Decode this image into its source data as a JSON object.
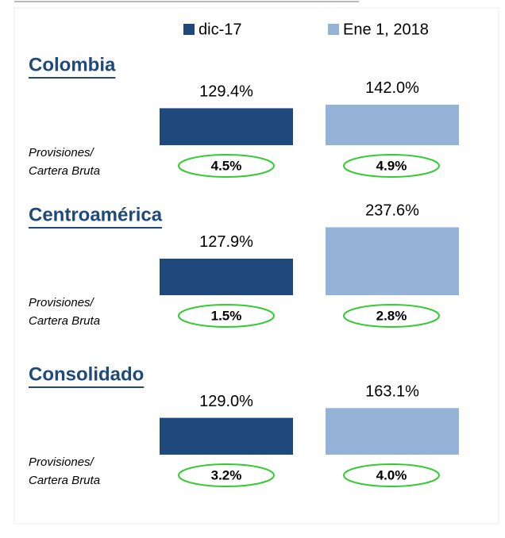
{
  "chart_data": [
    {
      "type": "bar",
      "title": "Colombia",
      "values": [
        129.4,
        142.0
      ],
      "value_labels": [
        "129.4%",
        "142.0%"
      ],
      "ratio_label": "Provisiones/ Cartera Bruta",
      "ratios": [
        4.5,
        4.9
      ],
      "ratio_labels": [
        "4.5%",
        "4.9%"
      ]
    },
    {
      "type": "bar",
      "title": "Centroamérica",
      "values": [
        127.9,
        237.6
      ],
      "value_labels": [
        "127.9%",
        "237.6%"
      ],
      "ratio_label": "Provisiones/ Cartera Bruta",
      "ratios": [
        1.5,
        2.8
      ],
      "ratio_labels": [
        "1.5%",
        "2.8%"
      ]
    },
    {
      "type": "bar",
      "title": "Consolidado",
      "values": [
        129.0,
        163.1
      ],
      "value_labels": [
        "129.0%",
        "163.1%"
      ],
      "ratio_label": "Provisiones/ Cartera Bruta",
      "ratios": [
        3.2,
        4.0
      ],
      "ratio_labels": [
        "3.2%",
        "4.0%"
      ]
    }
  ],
  "legend": [
    {
      "name": "dic-17",
      "color": "#1f497d"
    },
    {
      "name": "Ene 1, 2018",
      "color": "#95b3d7"
    }
  ],
  "ellipse_color": "#33cc33"
}
